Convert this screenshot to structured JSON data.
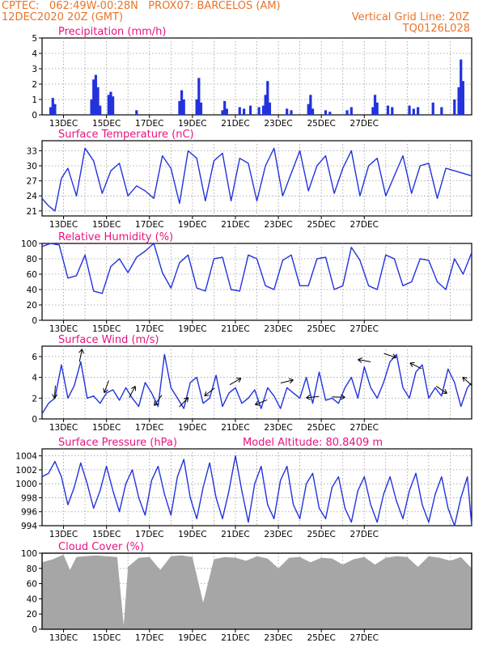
{
  "header": {
    "line1_left": "CPTEC:   062:49W-00:28N   PROX07: BARCELOS (AM)",
    "line2_left": "12DEC2020 20Z (GMT)",
    "line2_right": "Vertical Grid Line: 20Z",
    "line3_right": "TQ0126L028"
  },
  "colors": {
    "header": "#e8742a",
    "title": "#e8127f",
    "series": "#2233dd",
    "cloud": "#a6a6a6",
    "grid": "#9a9a9a"
  },
  "x_tick_labels": [
    "13DEC",
    "15DEC",
    "17DEC",
    "19DEC",
    "21DEC",
    "23DEC",
    "25DEC",
    "27DEC"
  ],
  "chart_data": [
    {
      "type": "bar",
      "title": "Precipitation (mm/h)",
      "ylim": [
        0,
        5
      ],
      "yticks": [
        0,
        1,
        2,
        3,
        4,
        5
      ],
      "x": [
        0.4,
        0.5,
        0.6,
        2.3,
        2.4,
        2.5,
        2.6,
        2.7,
        3.1,
        3.2,
        3.3,
        4.4,
        6.4,
        6.5,
        6.6,
        7.2,
        7.3,
        7.4,
        8.4,
        8.5,
        8.6,
        9.2,
        9.4,
        9.7,
        10.1,
        10.3,
        10.4,
        10.5,
        10.6,
        11.4,
        11.6,
        12.4,
        12.5,
        12.6,
        13.2,
        13.4,
        14.2,
        14.4,
        15.4,
        15.5,
        15.6,
        16.1,
        16.3,
        17.1,
        17.3,
        17.5,
        18.2,
        18.6,
        19.2,
        19.4,
        19.5,
        19.6
      ],
      "values": [
        0.5,
        1.1,
        0.7,
        1.0,
        2.3,
        2.6,
        1.8,
        0.6,
        1.3,
        1.5,
        1.2,
        0.3,
        0.9,
        1.6,
        1.0,
        1.0,
        2.4,
        0.8,
        0.3,
        0.9,
        0.4,
        0.5,
        0.4,
        0.6,
        0.5,
        0.6,
        1.3,
        2.2,
        0.8,
        0.4,
        0.3,
        0.7,
        1.3,
        0.4,
        0.3,
        0.2,
        0.3,
        0.5,
        0.5,
        1.3,
        0.8,
        0.6,
        0.5,
        0.6,
        0.4,
        0.5,
        0.8,
        0.5,
        1.0,
        1.8,
        3.6,
        2.2
      ]
    },
    {
      "type": "line",
      "title": "Surface Temperature (nC)",
      "ylim": [
        20,
        35
      ],
      "yticks": [
        21,
        24,
        27,
        30,
        33
      ],
      "x": [
        0,
        0.3,
        0.6,
        0.9,
        1.2,
        1.6,
        2.0,
        2.4,
        2.8,
        3.2,
        3.6,
        4.0,
        4.4,
        4.8,
        5.2,
        5.6,
        6.0,
        6.4,
        6.8,
        7.2,
        7.6,
        8.0,
        8.4,
        8.8,
        9.2,
        9.6,
        10.0,
        10.4,
        10.8,
        11.2,
        11.6,
        12.0,
        12.4,
        12.8,
        13.2,
        13.6,
        14.0,
        14.4,
        14.8,
        15.2,
        15.6,
        16.0,
        16.4,
        16.8,
        17.2,
        17.6,
        18.0,
        18.4,
        18.8,
        19.2,
        19.6,
        20.0
      ],
      "values": [
        23.5,
        22.0,
        21.0,
        27.5,
        29.5,
        24.0,
        33.5,
        31.0,
        24.5,
        29.0,
        30.5,
        24.0,
        26.0,
        25.0,
        23.5,
        32.0,
        29.5,
        22.5,
        33.0,
        31.5,
        23.0,
        31.0,
        32.5,
        23.0,
        31.5,
        30.5,
        23.0,
        30.0,
        33.5,
        24.0,
        28.5,
        33.0,
        25.0,
        30.0,
        32.0,
        24.5,
        29.5,
        33.0,
        24.0,
        30.0,
        31.5,
        24.0,
        28.0,
        32.0,
        24.5,
        30.0,
        30.5,
        23.5,
        29.5,
        29.0,
        28.5,
        28.0
      ]
    },
    {
      "type": "line",
      "title": "Relative Humidity (%)",
      "ylim": [
        0,
        100
      ],
      "yticks": [
        0,
        20,
        40,
        60,
        80,
        100
      ],
      "x": [
        0,
        0.4,
        0.8,
        1.2,
        1.6,
        2.0,
        2.4,
        2.8,
        3.2,
        3.6,
        4.0,
        4.4,
        4.8,
        5.2,
        5.6,
        6.0,
        6.4,
        6.8,
        7.2,
        7.6,
        8.0,
        8.4,
        8.8,
        9.2,
        9.6,
        10.0,
        10.4,
        10.8,
        11.2,
        11.6,
        12.0,
        12.4,
        12.8,
        13.2,
        13.6,
        14.0,
        14.4,
        14.8,
        15.2,
        15.6,
        16.0,
        16.4,
        16.8,
        17.2,
        17.6,
        18.0,
        18.4,
        18.8,
        19.2,
        19.6,
        20.0
      ],
      "values": [
        96,
        100,
        98,
        55,
        58,
        85,
        38,
        35,
        70,
        80,
        62,
        82,
        90,
        100,
        62,
        42,
        75,
        85,
        42,
        38,
        80,
        82,
        40,
        38,
        85,
        80,
        45,
        40,
        78,
        85,
        45,
        45,
        80,
        82,
        40,
        45,
        95,
        78,
        45,
        40,
        85,
        80,
        45,
        50,
        80,
        78,
        50,
        40,
        80,
        60,
        88
      ]
    },
    {
      "type": "line",
      "title": "Surface Wind (m/s)",
      "ylim": [
        0,
        7
      ],
      "yticks": [
        0,
        2,
        4,
        6
      ],
      "x": [
        0,
        0.3,
        0.6,
        0.9,
        1.2,
        1.5,
        1.8,
        2.1,
        2.4,
        2.7,
        3.0,
        3.3,
        3.6,
        3.9,
        4.2,
        4.5,
        4.8,
        5.1,
        5.4,
        5.7,
        6.0,
        6.3,
        6.6,
        6.9,
        7.2,
        7.5,
        7.8,
        8.1,
        8.4,
        8.7,
        9.0,
        9.3,
        9.6,
        9.9,
        10.2,
        10.5,
        10.8,
        11.1,
        11.4,
        11.7,
        12.0,
        12.3,
        12.6,
        12.9,
        13.2,
        13.5,
        13.8,
        14.1,
        14.4,
        14.7,
        15.0,
        15.3,
        15.6,
        15.9,
        16.2,
        16.5,
        16.8,
        17.1,
        17.4,
        17.7,
        18.0,
        18.3,
        18.6,
        18.9,
        19.2,
        19.5,
        19.8,
        20.0
      ],
      "values": [
        0.5,
        1.5,
        2.0,
        5.2,
        2.0,
        3.2,
        5.5,
        2.0,
        2.2,
        1.5,
        2.5,
        2.8,
        1.8,
        3.0,
        2.0,
        1.2,
        3.5,
        2.5,
        1.2,
        6.2,
        3.0,
        2.0,
        1.0,
        3.5,
        4.0,
        1.5,
        2.0,
        4.2,
        1.2,
        2.5,
        3.0,
        1.5,
        2.0,
        2.8,
        1.0,
        3.0,
        2.2,
        1.0,
        3.0,
        2.5,
        2.0,
        4.0,
        1.5,
        4.5,
        1.8,
        2.0,
        1.5,
        3.0,
        4.0,
        2.0,
        5.0,
        3.0,
        2.0,
        3.5,
        5.5,
        6.2,
        3.0,
        2.0,
        4.5,
        5.2,
        2.0,
        3.0,
        2.2,
        4.8,
        3.5,
        1.2,
        3.0,
        3.5
      ]
    },
    {
      "type": "line",
      "title": "Surface Pressure (hPa)",
      "annotation": "Model Altitude: 80.8409 m",
      "ylim": [
        994,
        1005
      ],
      "yticks": [
        994,
        996,
        998,
        1000,
        1002,
        1004
      ],
      "x": [
        0,
        0.3,
        0.6,
        0.9,
        1.2,
        1.5,
        1.8,
        2.1,
        2.4,
        2.7,
        3.0,
        3.3,
        3.6,
        3.9,
        4.2,
        4.5,
        4.8,
        5.1,
        5.4,
        5.7,
        6.0,
        6.3,
        6.6,
        6.9,
        7.2,
        7.5,
        7.8,
        8.1,
        8.4,
        8.7,
        9.0,
        9.3,
        9.6,
        9.9,
        10.2,
        10.5,
        10.8,
        11.1,
        11.4,
        11.7,
        12.0,
        12.3,
        12.6,
        12.9,
        13.2,
        13.5,
        13.8,
        14.1,
        14.4,
        14.7,
        15.0,
        15.3,
        15.6,
        15.9,
        16.2,
        16.5,
        16.8,
        17.1,
        17.4,
        17.7,
        18.0,
        18.3,
        18.6,
        18.9,
        19.2,
        19.5,
        19.8,
        20.0
      ],
      "values": [
        1001.0,
        1001.5,
        1003.2,
        1001.0,
        997.0,
        999.5,
        1003.0,
        1000.0,
        996.5,
        999.0,
        1002.5,
        999.0,
        996.0,
        1000.0,
        1002.0,
        998.0,
        995.5,
        1000.5,
        1002.5,
        998.5,
        995.5,
        1001.0,
        1003.5,
        998.0,
        995.0,
        999.5,
        1003.0,
        998.0,
        995.0,
        999.0,
        1004.0,
        999.0,
        994.5,
        1000.0,
        1002.5,
        997.0,
        995.0,
        1000.5,
        1002.5,
        997.0,
        995.0,
        1000.0,
        1001.5,
        996.5,
        995.0,
        999.5,
        1001.0,
        996.5,
        994.5,
        999.0,
        1001.0,
        997.0,
        994.5,
        998.5,
        1001.0,
        997.5,
        995.0,
        999.0,
        1001.5,
        997.0,
        994.5,
        998.5,
        1001.0,
        996.5,
        994.0,
        998.0,
        1001.0,
        994.0
      ]
    },
    {
      "type": "area",
      "title": "Cloud Cover (%)",
      "ylim": [
        0,
        100
      ],
      "yticks": [
        0,
        20,
        40,
        60,
        80,
        100
      ],
      "x": [
        0,
        0.5,
        1.0,
        1.3,
        1.6,
        2.0,
        2.5,
        3.0,
        3.5,
        3.8,
        4.0,
        4.5,
        5.0,
        5.5,
        6.0,
        6.5,
        7.0,
        7.5,
        8.0,
        8.5,
        9.0,
        9.5,
        10.0,
        10.5,
        11.0,
        11.5,
        12.0,
        12.5,
        13.0,
        13.5,
        14.0,
        14.5,
        15.0,
        15.5,
        16.0,
        16.5,
        17.0,
        17.5,
        18.0,
        18.5,
        19.0,
        19.5,
        20.0
      ],
      "values": [
        88,
        92,
        98,
        78,
        95,
        96,
        97,
        96,
        95,
        5,
        82,
        94,
        95,
        78,
        96,
        97,
        95,
        35,
        92,
        95,
        94,
        90,
        96,
        93,
        80,
        94,
        95,
        88,
        94,
        93,
        85,
        92,
        95,
        85,
        94,
        96,
        95,
        82,
        96,
        94,
        90,
        95,
        80
      ]
    }
  ]
}
